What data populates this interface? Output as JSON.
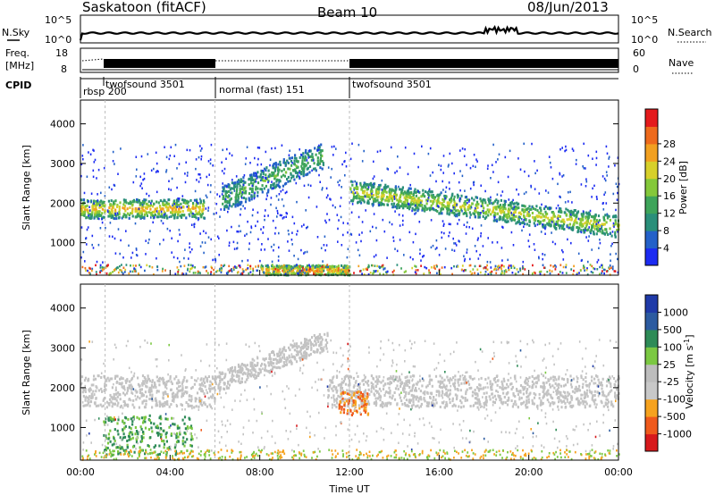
{
  "header": {
    "title_left": "Saskatoon (fitACF)",
    "title_center": "Beam 10",
    "title_right": "08/Jun/2013"
  },
  "top_panels": {
    "nsky_label": "N.Sky",
    "nsearch_label": "N.Search",
    "noise_ticks": [
      "10^5",
      "10^0"
    ],
    "freq_label_line1": "Freq.",
    "freq_label_line2": "[MHz]",
    "freq_ticks": [
      "18",
      "8"
    ],
    "nave_label": "Nave",
    "nave_ticks": [
      "60",
      "0"
    ],
    "cpid_label": "CPID"
  },
  "cpid_segments": [
    {
      "name": "rbsp",
      "id": "200",
      "start": 0.0,
      "end": 1.1
    },
    {
      "name": "twofsound",
      "id": "3501",
      "start": 1.1,
      "end": 6.0
    },
    {
      "name": "normal (fast)",
      "id": "151",
      "start": 6.0,
      "end": 12.0
    },
    {
      "name": "twofsound",
      "id": "3501",
      "start": 12.0,
      "end": 24.0
    }
  ],
  "colors": {
    "power_scale": [
      "#1c2bf2",
      "#2461c9",
      "#2a8f7a",
      "#3ea45a",
      "#84c83a",
      "#d7d02a",
      "#f2a020",
      "#ee6a1c",
      "#e41a1c"
    ],
    "velocity_scale": [
      "#d7191c",
      "#ef5a1c",
      "#f6a21e",
      "#c8c8c8",
      "#bdbdbd",
      "#7bc842",
      "#2e8b57",
      "#2c5ba0",
      "#1f3aa8"
    ],
    "ground_scatter": "#c3c3c3"
  },
  "chart_data": [
    {
      "type": "heatmap",
      "panel": "power",
      "ylabel": "Slant Range [km]",
      "xlim_hours": [
        0,
        24
      ],
      "ylim_km": [
        180,
        4600
      ],
      "yticks": [
        "1000",
        "2000",
        "3000",
        "4000"
      ],
      "colorbar_label": "Power [dB]",
      "colorbar_ticks": [
        "4",
        "8",
        "12",
        "16",
        "20",
        "24",
        "28"
      ],
      "features": [
        {
          "desc": "echo band",
          "time_start": 0.0,
          "time_end": 5.5,
          "range_km": [
            1650,
            2050
          ],
          "power_db": [
            8,
            26
          ]
        },
        {
          "desc": "rising echo band",
          "time_start": 6.3,
          "time_end": 10.8,
          "range_km": [
            2100,
            3200
          ],
          "power_db": [
            6,
            16
          ]
        },
        {
          "desc": "descending echo band",
          "time_start": 12.0,
          "time_end": 24.0,
          "range_km": [
            1400,
            2300
          ],
          "power_db": [
            8,
            22
          ]
        },
        {
          "desc": "near-range echoes",
          "time_start": 8.0,
          "time_end": 12.0,
          "range_km": [
            200,
            400
          ],
          "power_db": [
            12,
            28
          ]
        }
      ]
    },
    {
      "type": "heatmap",
      "panel": "velocity",
      "ylabel": "Slant Range [km]",
      "xlabel": "Time UT",
      "xlim_hours": [
        0,
        24
      ],
      "xticks": [
        "00:00",
        "04:00",
        "08:00",
        "12:00",
        "16:00",
        "20:00",
        "00:00"
      ],
      "ylim_km": [
        180,
        4600
      ],
      "yticks": [
        "1000",
        "2000",
        "3000",
        "4000"
      ],
      "colorbar_label": "Velocity [m s^-1]",
      "colorbar_label_text": "Velocity [m s",
      "colorbar_label_sup": "-1",
      "colorbar_label_end": "]",
      "colorbar_ticks": [
        "1000",
        "500",
        "100",
        "25",
        "-25",
        "-100",
        "-500",
        "-1000"
      ],
      "features": [
        {
          "desc": "ground scatter band",
          "time_start": 0.0,
          "time_end": 24.0,
          "range_km": [
            1500,
            2300
          ],
          "velocity": [
            -25,
            25
          ]
        },
        {
          "desc": "positive velocity region",
          "time_start": 1.0,
          "time_end": 5.0,
          "range_km": [
            300,
            1300
          ],
          "velocity": [
            100,
            500
          ]
        },
        {
          "desc": "negative velocity patch",
          "time_start": 11.5,
          "time_end": 12.8,
          "range_km": [
            1300,
            1900
          ],
          "velocity": [
            -500,
            -100
          ]
        }
      ]
    }
  ]
}
